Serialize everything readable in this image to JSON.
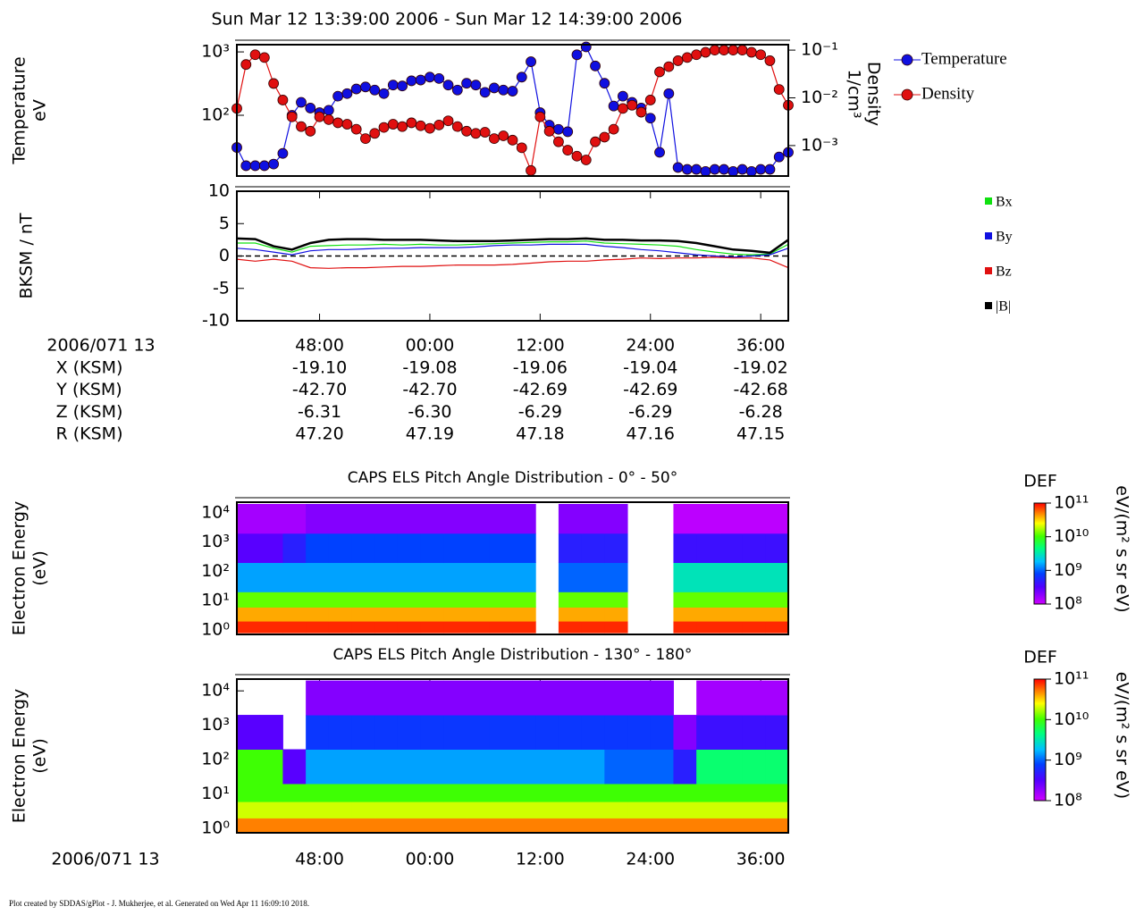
{
  "title": "Sun Mar 12 13:39:00 2006 - Sun Mar 12 14:39:00 2006",
  "footer": "Plot created by SDDAS/gPlot - J. Mukherjee, et al.  Generated on Wed Apr 11 16:09:10 2018.",
  "ephemeris": {
    "time_label": "2006/071 13",
    "rows": [
      {
        "name": "X (KSM)",
        "values": [
          "-19.10",
          "-19.08",
          "-19.06",
          "-19.04",
          "-19.02"
        ]
      },
      {
        "name": "Y (KSM)",
        "values": [
          "-42.70",
          "-42.70",
          "-42.69",
          "-42.69",
          "-42.68"
        ]
      },
      {
        "name": "Z (KSM)",
        "values": [
          "-6.31",
          "-6.30",
          "-6.29",
          "-6.29",
          "-6.28"
        ]
      },
      {
        "name": "R (KSM)",
        "values": [
          "47.20",
          "47.19",
          "47.18",
          "47.16",
          "47.15"
        ]
      }
    ]
  },
  "chart_data": [
    {
      "type": "line",
      "y_label": [
        "Temperature",
        "eV"
      ],
      "y2_label": [
        "Density",
        "1/cm³"
      ],
      "xlim": [
        39,
        99
      ],
      "ylim": [
        11,
        1300
      ],
      "ylog": true,
      "yticks": [
        {
          "value": 100,
          "label": "10²"
        },
        {
          "value": 1000,
          "label": "10³"
        }
      ],
      "y2lim": [
        0.00023,
        0.13
      ],
      "y2log": true,
      "y2ticks": [
        {
          "value": 0.001,
          "label": "10⁻³"
        },
        {
          "value": 0.01,
          "label": "10⁻²"
        },
        {
          "value": 0.1,
          "label": "10⁻¹"
        }
      ],
      "markers": true,
      "x": [
        39,
        40,
        41,
        42,
        43,
        44,
        45,
        46,
        47,
        48,
        49,
        50,
        51,
        52,
        53,
        54,
        55,
        56,
        57,
        58,
        59,
        60,
        61,
        62,
        63,
        64,
        65,
        66,
        67,
        68,
        69,
        70,
        71,
        72,
        73,
        74,
        75,
        76,
        77,
        78,
        79,
        80,
        81,
        82,
        83,
        84,
        85,
        86,
        87,
        88,
        89,
        90,
        91,
        92,
        93,
        94,
        95,
        96,
        97,
        98,
        99
      ],
      "series": [
        {
          "name": "Temperature",
          "color": "#1010e0",
          "values": [
            31,
            16,
            16,
            16,
            17,
            25,
            100,
            160,
            130,
            110,
            120,
            200,
            220,
            260,
            280,
            250,
            220,
            300,
            290,
            350,
            360,
            400,
            380,
            300,
            250,
            320,
            300,
            230,
            270,
            250,
            240,
            400,
            700,
            110,
            70,
            60,
            55,
            900,
            1200,
            600,
            320,
            140,
            200,
            160,
            130,
            90,
            26,
            220,
            15,
            14,
            14,
            13,
            14,
            14,
            13,
            14,
            13,
            14,
            14,
            22,
            26
          ]
        },
        {
          "name": "Density",
          "color": "#e01010",
          "axis": "y2",
          "values": [
            0.006,
            0.05,
            0.08,
            0.07,
            0.02,
            0.009,
            0.004,
            0.0025,
            0.002,
            0.004,
            0.0035,
            0.003,
            0.0028,
            0.0022,
            0.0014,
            0.0018,
            0.0024,
            0.0028,
            0.0025,
            0.003,
            0.0026,
            0.0023,
            0.0027,
            0.0033,
            0.0025,
            0.002,
            0.0018,
            0.0019,
            0.0014,
            0.0016,
            0.0013,
            0.0009,
            0.0003,
            0.004,
            0.002,
            0.0012,
            0.0008,
            0.0006,
            0.0005,
            0.0012,
            0.0015,
            0.0022,
            0.006,
            0.007,
            0.005,
            0.009,
            0.035,
            0.045,
            0.06,
            0.07,
            0.08,
            0.09,
            0.1,
            0.1,
            0.1,
            0.1,
            0.09,
            0.08,
            0.06,
            0.015,
            0.007
          ]
        }
      ]
    },
    {
      "type": "line",
      "y_label": [
        "BKSM / nT"
      ],
      "xlim": [
        39,
        99
      ],
      "ylim": [
        -10,
        10
      ],
      "yticks": [
        -10,
        -5,
        0,
        5,
        10
      ],
      "zero_line": true,
      "xticks": [
        {
          "value": 48,
          "label": "48:00"
        },
        {
          "value": 60,
          "label": "00:00"
        },
        {
          "value": 72,
          "label": "12:00"
        },
        {
          "value": 84,
          "label": "24:00"
        },
        {
          "value": 96,
          "label": "36:00"
        }
      ],
      "x": [
        39,
        41,
        43,
        45,
        47,
        49,
        51,
        53,
        55,
        57,
        59,
        61,
        63,
        65,
        67,
        69,
        71,
        73,
        75,
        77,
        79,
        81,
        83,
        85,
        87,
        89,
        91,
        93,
        95,
        97,
        99
      ],
      "series": [
        {
          "name": "Bx",
          "color": "#10e010",
          "values": [
            2.0,
            2.0,
            1.2,
            0.6,
            1.5,
            1.6,
            1.7,
            1.7,
            1.8,
            1.7,
            1.8,
            1.7,
            1.7,
            1.8,
            1.9,
            2.0,
            2.1,
            2.2,
            2.2,
            2.3,
            2.0,
            1.9,
            1.8,
            1.7,
            1.5,
            1.0,
            0.6,
            0.3,
            0.2,
            0.3,
            1.8
          ]
        },
        {
          "name": "By",
          "color": "#1010e0",
          "values": [
            1.2,
            1.0,
            0.6,
            0.2,
            0.8,
            1.0,
            1.0,
            1.1,
            1.2,
            1.2,
            1.3,
            1.3,
            1.3,
            1.4,
            1.6,
            1.7,
            1.7,
            1.8,
            1.8,
            1.8,
            1.5,
            1.3,
            1.0,
            0.8,
            0.5,
            0.2,
            0,
            -0.2,
            0,
            0.2,
            1.2
          ]
        },
        {
          "name": "Bz",
          "color": "#e01010",
          "values": [
            -0.5,
            -0.8,
            -0.5,
            -0.8,
            -1.8,
            -1.9,
            -1.8,
            -1.8,
            -1.7,
            -1.6,
            -1.6,
            -1.5,
            -1.4,
            -1.4,
            -1.4,
            -1.3,
            -1.1,
            -0.9,
            -0.8,
            -0.8,
            -0.6,
            -0.5,
            -0.3,
            -0.4,
            -0.3,
            -0.3,
            -0.2,
            -0.3,
            -0.3,
            -0.6,
            -1.8
          ]
        },
        {
          "name": "|B|",
          "color": "#000000",
          "values": [
            2.7,
            2.6,
            1.5,
            1.0,
            2.0,
            2.5,
            2.6,
            2.6,
            2.5,
            2.5,
            2.5,
            2.4,
            2.3,
            2.3,
            2.3,
            2.4,
            2.5,
            2.6,
            2.6,
            2.7,
            2.5,
            2.5,
            2.4,
            2.4,
            2.3,
            2.0,
            1.5,
            1.0,
            0.8,
            0.5,
            2.5
          ]
        }
      ]
    },
    {
      "type": "heatmap",
      "title": "CAPS ELS Pitch Angle Distribution - 0° - 50°",
      "y_label": [
        "Electron Energy",
        "(eV)"
      ],
      "xlim": [
        39,
        99
      ],
      "ylim": [
        0.7,
        23000
      ],
      "ylog": true,
      "yticks": [
        {
          "value": 1,
          "label": "10⁰"
        },
        {
          "value": 10,
          "label": "10¹"
        },
        {
          "value": 100,
          "label": "10²"
        },
        {
          "value": 1000,
          "label": "10³"
        },
        {
          "value": 10000,
          "label": "10⁴"
        }
      ],
      "colorbar_title": "DEF",
      "colorbar_label": "eV/(m² s sr eV)",
      "zlim": [
        100000000.0,
        100000000000.0
      ],
      "zticks": [
        {
          "value": 100000000.0,
          "label": "10⁸"
        },
        {
          "value": 1000000000.0,
          "label": "10⁹"
        },
        {
          "value": 10000000000.0,
          "label": "10¹⁰"
        },
        {
          "value": 100000000000.0,
          "label": "10¹¹"
        }
      ],
      "xbins": [
        39,
        41.5,
        44,
        46.5,
        49,
        51.5,
        54,
        56.5,
        59,
        61.5,
        64,
        66.5,
        69,
        71.5,
        74,
        76.5,
        79,
        81.5,
        84,
        86.5,
        89,
        91.5,
        94,
        96.5,
        99
      ],
      "ybins": [
        0.8,
        2,
        6,
        20,
        200,
        2000,
        20000
      ],
      "z": [
        [
          80000000000.0,
          80000000000.0,
          80000000000.0,
          80000000000.0,
          80000000000.0,
          80000000000.0,
          80000000000.0,
          80000000000.0,
          80000000000.0,
          80000000000.0,
          80000000000.0,
          80000000000.0,
          80000000000.0,
          null,
          80000000000.0,
          80000000000.0,
          80000000000.0,
          null,
          null,
          80000000000.0,
          80000000000.0,
          80000000000.0,
          80000000000.0,
          80000000000.0
        ],
        [
          40000000000.0,
          40000000000.0,
          40000000000.0,
          40000000000.0,
          40000000000.0,
          40000000000.0,
          40000000000.0,
          40000000000.0,
          40000000000.0,
          40000000000.0,
          40000000000.0,
          40000000000.0,
          40000000000.0,
          null,
          40000000000.0,
          40000000000.0,
          40000000000.0,
          null,
          null,
          40000000000.0,
          40000000000.0,
          40000000000.0,
          40000000000.0,
          40000000000.0
        ],
        [
          12000000000.0,
          12000000000.0,
          12000000000.0,
          12000000000.0,
          12000000000.0,
          12000000000.0,
          12000000000.0,
          12000000000.0,
          12000000000.0,
          12000000000.0,
          12000000000.0,
          12000000000.0,
          12000000000.0,
          null,
          12000000000.0,
          12000000000.0,
          12000000000.0,
          null,
          null,
          12000000000.0,
          12000000000.0,
          12000000000.0,
          12000000000.0,
          12000000000.0
        ],
        [
          1500000000.0,
          1500000000.0,
          1500000000.0,
          1500000000.0,
          1500000000.0,
          1500000000.0,
          1500000000.0,
          1500000000.0,
          1500000000.0,
          1500000000.0,
          1500000000.0,
          1500000000.0,
          1500000000.0,
          null,
          1000000000.0,
          1000000000.0,
          1000000000.0,
          null,
          null,
          3000000000.0,
          3000000000.0,
          3000000000.0,
          3000000000.0,
          3000000000.0
        ],
        [
          300000000.0,
          300000000.0,
          500000000.0,
          800000000.0,
          800000000.0,
          800000000.0,
          800000000.0,
          800000000.0,
          800000000.0,
          800000000.0,
          800000000.0,
          800000000.0,
          800000000.0,
          null,
          500000000.0,
          500000000.0,
          500000000.0,
          null,
          null,
          400000000.0,
          400000000.0,
          400000000.0,
          400000000.0,
          400000000.0
        ],
        [
          150000000.0,
          150000000.0,
          150000000.0,
          200000000.0,
          200000000.0,
          200000000.0,
          200000000.0,
          200000000.0,
          200000000.0,
          200000000.0,
          200000000.0,
          200000000.0,
          200000000.0,
          null,
          200000000.0,
          200000000.0,
          200000000.0,
          null,
          null,
          120000000.0,
          120000000.0,
          120000000.0,
          120000000.0,
          120000000.0
        ]
      ]
    },
    {
      "type": "heatmap",
      "title": "CAPS ELS Pitch Angle Distribution - 130° - 180°",
      "y_label": [
        "Electron Energy",
        "(eV)"
      ],
      "x_label": "2006/071 13",
      "xlim": [
        39,
        99
      ],
      "ylim": [
        0.74,
        22000
      ],
      "ylog": true,
      "xticks": [
        {
          "value": 48,
          "label": "48:00"
        },
        {
          "value": 60,
          "label": "00:00"
        },
        {
          "value": 72,
          "label": "12:00"
        },
        {
          "value": 84,
          "label": "24:00"
        },
        {
          "value": 96,
          "label": "36:00"
        }
      ],
      "yticks": [
        {
          "value": 1,
          "label": "10⁰"
        },
        {
          "value": 10,
          "label": "10¹"
        },
        {
          "value": 100,
          "label": "10²"
        },
        {
          "value": 1000,
          "label": "10³"
        },
        {
          "value": 10000,
          "label": "10⁴"
        }
      ],
      "colorbar_title": "DEF",
      "colorbar_label": "eV/(m² s sr eV)",
      "zlim": [
        100000000.0,
        100000000000.0
      ],
      "zticks": [
        {
          "value": 100000000.0,
          "label": "10⁸"
        },
        {
          "value": 1000000000.0,
          "label": "10⁹"
        },
        {
          "value": 10000000000.0,
          "label": "10¹⁰"
        },
        {
          "value": 100000000000.0,
          "label": "10¹¹"
        }
      ],
      "xbins": [
        39,
        41.5,
        44,
        46.5,
        49,
        51.5,
        54,
        56.5,
        59,
        61.5,
        64,
        66.5,
        69,
        71.5,
        74,
        76.5,
        79,
        81.5,
        84,
        86.5,
        89,
        91.5,
        94,
        96.5,
        99
      ],
      "ybins": [
        0.8,
        2,
        6,
        20,
        200,
        2000,
        20000
      ],
      "z": [
        [
          50000000000.0,
          50000000000.0,
          50000000000.0,
          50000000000.0,
          50000000000.0,
          50000000000.0,
          50000000000.0,
          50000000000.0,
          50000000000.0,
          50000000000.0,
          50000000000.0,
          50000000000.0,
          50000000000.0,
          50000000000.0,
          50000000000.0,
          50000000000.0,
          50000000000.0,
          50000000000.0,
          50000000000.0,
          50000000000.0,
          50000000000.0,
          50000000000.0,
          50000000000.0,
          50000000000.0
        ],
        [
          20000000000.0,
          20000000000.0,
          20000000000.0,
          20000000000.0,
          20000000000.0,
          20000000000.0,
          20000000000.0,
          20000000000.0,
          20000000000.0,
          20000000000.0,
          20000000000.0,
          20000000000.0,
          20000000000.0,
          20000000000.0,
          20000000000.0,
          20000000000.0,
          20000000000.0,
          20000000000.0,
          20000000000.0,
          20000000000.0,
          20000000000.0,
          20000000000.0,
          20000000000.0,
          20000000000.0
        ],
        [
          10000000000.0,
          10000000000.0,
          10000000000.0,
          10000000000.0,
          10000000000.0,
          10000000000.0,
          10000000000.0,
          10000000000.0,
          10000000000.0,
          10000000000.0,
          10000000000.0,
          10000000000.0,
          10000000000.0,
          10000000000.0,
          10000000000.0,
          10000000000.0,
          10000000000.0,
          10000000000.0,
          10000000000.0,
          10000000000.0,
          10000000000.0,
          10000000000.0,
          10000000000.0,
          10000000000.0
        ],
        [
          10000000000.0,
          10000000000.0,
          300000000.0,
          1500000000.0,
          1500000000.0,
          1500000000.0,
          1500000000.0,
          1500000000.0,
          1500000000.0,
          1500000000.0,
          1500000000.0,
          1500000000.0,
          1500000000.0,
          1500000000.0,
          1500000000.0,
          1500000000.0,
          1000000000.0,
          1000000000.0,
          1000000000.0,
          500000000.0,
          5000000000.0,
          5000000000.0,
          5000000000.0,
          5000000000.0
        ],
        [
          300000000.0,
          300000000.0,
          null,
          700000000.0,
          700000000.0,
          700000000.0,
          700000000.0,
          700000000.0,
          700000000.0,
          700000000.0,
          700000000.0,
          700000000.0,
          700000000.0,
          700000000.0,
          700000000.0,
          700000000.0,
          700000000.0,
          700000000.0,
          700000000.0,
          200000000.0,
          400000000.0,
          400000000.0,
          400000000.0,
          400000000.0
        ],
        [
          null,
          null,
          null,
          200000000.0,
          200000000.0,
          200000000.0,
          200000000.0,
          200000000.0,
          200000000.0,
          200000000.0,
          200000000.0,
          200000000.0,
          200000000.0,
          200000000.0,
          200000000.0,
          200000000.0,
          200000000.0,
          200000000.0,
          200000000.0,
          null,
          150000000.0,
          150000000.0,
          150000000.0,
          150000000.0
        ]
      ]
    }
  ]
}
